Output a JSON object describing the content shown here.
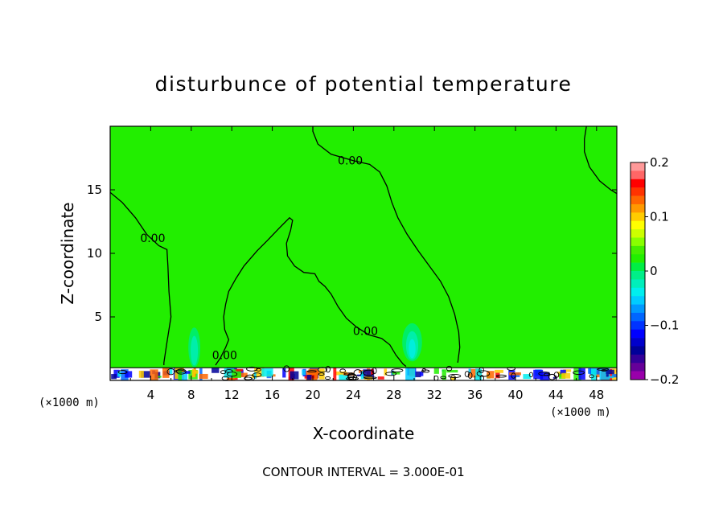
{
  "chart_data": {
    "type": "heatmap",
    "title": "disturbunce of potential temperature",
    "xlabel": "X-coordinate",
    "ylabel": "Z-coordinate",
    "x_unit": "(×1000 m)",
    "xlim": [
      0,
      50
    ],
    "ylim": [
      0,
      20
    ],
    "x_ticks": [
      4,
      8,
      12,
      16,
      20,
      24,
      28,
      32,
      36,
      40,
      44,
      48
    ],
    "y_ticks": [
      5,
      10,
      15
    ],
    "background_color": "#22ee00",
    "contour_level": "0.00",
    "contour_labels": [
      {
        "text": "0.00",
        "x": 23.7,
        "z": 17.3
      },
      {
        "text": "0.00",
        "x": 4.2,
        "z": 11.2
      },
      {
        "text": "0.00",
        "x": 11.3,
        "z": 2.0
      },
      {
        "text": "0.00",
        "x": 25.2,
        "z": 3.9
      }
    ],
    "zero_contour": [
      {
        "id": "left",
        "points": [
          [
            0,
            14.8
          ],
          [
            1.2,
            14.0
          ],
          [
            2.5,
            12.8
          ],
          [
            3.6,
            11.5
          ],
          [
            4.8,
            10.6
          ],
          [
            5.6,
            10.3
          ],
          [
            5.7,
            9.0
          ],
          [
            5.8,
            7.0
          ],
          [
            6.0,
            5.0
          ],
          [
            5.6,
            3.0
          ],
          [
            5.3,
            1.4
          ],
          [
            5.3,
            1.2
          ]
        ]
      },
      {
        "id": "center",
        "points": [
          [
            10.4,
            1.2
          ],
          [
            10.9,
            1.8
          ],
          [
            11.4,
            2.6
          ],
          [
            11.7,
            3.2
          ],
          [
            11.3,
            4.0
          ],
          [
            11.2,
            5.0
          ],
          [
            11.4,
            6.0
          ],
          [
            11.7,
            7.0
          ],
          [
            12.4,
            8.0
          ],
          [
            13.2,
            9.0
          ],
          [
            14.5,
            10.2
          ],
          [
            15.5,
            11.0
          ],
          [
            16.7,
            12.0
          ],
          [
            17.7,
            12.8
          ],
          [
            18.0,
            12.6
          ],
          [
            17.8,
            11.8
          ],
          [
            17.4,
            10.8
          ],
          [
            17.5,
            9.8
          ],
          [
            18.2,
            9.0
          ],
          [
            19.1,
            8.5
          ],
          [
            20.2,
            8.4
          ],
          [
            20.6,
            7.8
          ],
          [
            21.2,
            7.4
          ],
          [
            21.8,
            6.8
          ],
          [
            22.5,
            5.8
          ],
          [
            23.3,
            4.9
          ],
          [
            24.3,
            4.2
          ],
          [
            25.5,
            3.6
          ],
          [
            26.8,
            3.3
          ],
          [
            27.6,
            2.8
          ],
          [
            28.2,
            2.0
          ],
          [
            28.9,
            1.3
          ],
          [
            29.2,
            1.1
          ]
        ]
      },
      {
        "id": "right-plume",
        "points": [
          [
            34.3,
            1.4
          ],
          [
            34.5,
            2.6
          ],
          [
            34.4,
            3.8
          ],
          [
            34.0,
            5.2
          ],
          [
            33.4,
            6.6
          ],
          [
            32.6,
            7.8
          ],
          [
            31.5,
            9.0
          ],
          [
            30.4,
            10.2
          ],
          [
            29.3,
            11.5
          ],
          [
            28.4,
            12.8
          ],
          [
            27.8,
            14.0
          ],
          [
            27.3,
            15.3
          ],
          [
            26.6,
            16.4
          ],
          [
            25.6,
            17.0
          ],
          [
            24.0,
            17.3
          ],
          [
            21.8,
            17.8
          ],
          [
            20.5,
            18.6
          ],
          [
            20.0,
            19.6
          ],
          [
            20.0,
            20.0
          ]
        ]
      },
      {
        "id": "top-right",
        "points": [
          [
            47.0,
            20.0
          ],
          [
            46.8,
            19.0
          ],
          [
            46.8,
            18.0
          ],
          [
            47.3,
            16.8
          ],
          [
            48.3,
            15.7
          ],
          [
            49.4,
            15.0
          ],
          [
            50.0,
            14.7
          ]
        ]
      }
    ],
    "cold_anomalies": [
      {
        "x": 8.3,
        "z": 2.6,
        "dx": 0.9,
        "dz": 2.6,
        "value": -0.02
      },
      {
        "x": 29.8,
        "z": 3.0,
        "dx": 1.5,
        "dz": 2.5,
        "value": -0.04
      }
    ],
    "surface_layer_depth": 1.0,
    "colorbar": {
      "min": -0.2,
      "max": 0.2,
      "tick_labels": [
        "0.2",
        "0.1",
        "0",
        "−0.1",
        "−0.2"
      ],
      "tick_values": [
        0.2,
        0.1,
        0,
        -0.1,
        -0.2
      ],
      "colors_top_to_bottom": [
        "#ff9999",
        "#ff6666",
        "#ff0000",
        "#ff3300",
        "#ff6600",
        "#ff9900",
        "#ffcc00",
        "#ffff00",
        "#ccff00",
        "#88ff00",
        "#44ee00",
        "#22ee00",
        "#00ee44",
        "#00ee88",
        "#00eebb",
        "#00eeee",
        "#00ccff",
        "#0099ff",
        "#0066ff",
        "#0033ff",
        "#0000ff",
        "#0000cc",
        "#000099",
        "#330099",
        "#660099",
        "#9900aa"
      ]
    }
  },
  "footer": {
    "contour_interval": "CONTOUR INTERVAL = 3.000E-01"
  }
}
